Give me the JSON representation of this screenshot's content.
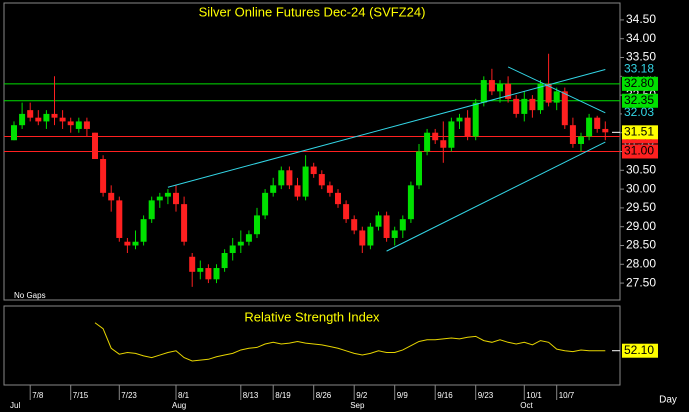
{
  "chart_data": {
    "type": "candlestick",
    "title": "Silver Online Futures Dec-24 (SVFZ24)",
    "note": "No Gaps",
    "x_unit_label": "Day",
    "up_color": "#00e000",
    "down_color": "#ff2020",
    "categories": [
      null,
      null,
      "7/8",
      null,
      null,
      null,
      null,
      "7/15",
      null,
      null,
      null,
      null,
      null,
      "7/23",
      null,
      null,
      null,
      null,
      null,
      null,
      "8/1",
      null,
      null,
      null,
      null,
      null,
      null,
      null,
      "8/13",
      null,
      null,
      null,
      "8/19",
      null,
      null,
      null,
      null,
      "8/26",
      null,
      null,
      null,
      null,
      "9/2",
      null,
      null,
      null,
      null,
      "9/9",
      null,
      null,
      null,
      null,
      "9/16",
      null,
      null,
      null,
      null,
      "9/23",
      null,
      null,
      null,
      null,
      null,
      "10/1",
      null,
      null,
      null,
      "10/7",
      null,
      null,
      null,
      null,
      null,
      null
    ],
    "months": [
      "Jul",
      null,
      null,
      null,
      null,
      null,
      null,
      null,
      null,
      null,
      null,
      null,
      null,
      null,
      null,
      null,
      null,
      null,
      null,
      null,
      "Aug",
      null,
      null,
      null,
      null,
      null,
      null,
      null,
      null,
      null,
      null,
      null,
      null,
      null,
      null,
      null,
      null,
      null,
      null,
      null,
      null,
      null,
      "Sep",
      null,
      null,
      null,
      null,
      null,
      null,
      null,
      null,
      null,
      null,
      null,
      null,
      null,
      null,
      null,
      null,
      null,
      null,
      null,
      null,
      "Oct",
      null,
      null,
      null,
      null,
      null,
      null,
      null,
      null,
      null,
      null
    ],
    "candles": [
      {
        "o": 31.3,
        "h": 31.8,
        "l": 31.3,
        "c": 31.7
      },
      {
        "o": 31.7,
        "h": 32.3,
        "l": 31.6,
        "c": 32.0
      },
      {
        "o": 32.1,
        "h": 32.3,
        "l": 31.8,
        "c": 31.9
      },
      {
        "o": 31.9,
        "h": 32.1,
        "l": 31.7,
        "c": 31.8
      },
      {
        "o": 31.8,
        "h": 32.1,
        "l": 31.6,
        "c": 32.0
      },
      {
        "o": 32.0,
        "h": 33.0,
        "l": 31.7,
        "c": 31.9
      },
      {
        "o": 31.9,
        "h": 32.1,
        "l": 31.6,
        "c": 31.8
      },
      {
        "o": 31.8,
        "h": 31.9,
        "l": 31.5,
        "c": 31.7
      },
      {
        "o": 31.6,
        "h": 31.9,
        "l": 31.5,
        "c": 31.8
      },
      {
        "o": 31.8,
        "h": 31.9,
        "l": 31.4,
        "c": 31.6
      },
      {
        "o": 31.5,
        "h": 31.5,
        "l": 30.8,
        "c": 30.8
      },
      {
        "o": 30.8,
        "h": 30.9,
        "l": 29.8,
        "c": 29.9
      },
      {
        "o": 29.9,
        "h": 30.1,
        "l": 29.4,
        "c": 29.7
      },
      {
        "o": 29.7,
        "h": 29.8,
        "l": 28.6,
        "c": 28.7
      },
      {
        "o": 28.6,
        "h": 28.7,
        "l": 28.3,
        "c": 28.5
      },
      {
        "o": 28.5,
        "h": 28.9,
        "l": 28.4,
        "c": 28.6
      },
      {
        "o": 28.6,
        "h": 29.3,
        "l": 28.5,
        "c": 29.2
      },
      {
        "o": 29.2,
        "h": 29.8,
        "l": 29.1,
        "c": 29.7
      },
      {
        "o": 29.7,
        "h": 29.9,
        "l": 29.5,
        "c": 29.8
      },
      {
        "o": 29.8,
        "h": 30.0,
        "l": 29.6,
        "c": 29.9
      },
      {
        "o": 29.9,
        "h": 30.1,
        "l": 29.4,
        "c": 29.6
      },
      {
        "o": 29.6,
        "h": 29.8,
        "l": 28.5,
        "c": 28.6
      },
      {
        "o": 28.2,
        "h": 28.3,
        "l": 27.4,
        "c": 27.8
      },
      {
        "o": 27.8,
        "h": 28.1,
        "l": 27.6,
        "c": 27.9
      },
      {
        "o": 27.9,
        "h": 28.0,
        "l": 27.5,
        "c": 27.6
      },
      {
        "o": 27.6,
        "h": 28.0,
        "l": 27.5,
        "c": 27.9
      },
      {
        "o": 27.9,
        "h": 28.4,
        "l": 27.8,
        "c": 28.3
      },
      {
        "o": 28.3,
        "h": 28.7,
        "l": 28.1,
        "c": 28.5
      },
      {
        "o": 28.5,
        "h": 28.9,
        "l": 28.3,
        "c": 28.6
      },
      {
        "o": 28.6,
        "h": 28.9,
        "l": 28.5,
        "c": 28.8
      },
      {
        "o": 28.8,
        "h": 29.5,
        "l": 28.7,
        "c": 29.3
      },
      {
        "o": 29.3,
        "h": 30.0,
        "l": 29.2,
        "c": 29.9
      },
      {
        "o": 29.9,
        "h": 30.3,
        "l": 29.8,
        "c": 30.1
      },
      {
        "o": 30.1,
        "h": 30.6,
        "l": 30.0,
        "c": 30.5
      },
      {
        "o": 30.5,
        "h": 30.6,
        "l": 30.0,
        "c": 30.1
      },
      {
        "o": 30.1,
        "h": 30.3,
        "l": 29.7,
        "c": 29.8
      },
      {
        "o": 29.8,
        "h": 30.9,
        "l": 29.7,
        "c": 30.6
      },
      {
        "o": 30.6,
        "h": 30.7,
        "l": 30.3,
        "c": 30.4
      },
      {
        "o": 30.4,
        "h": 30.5,
        "l": 30.0,
        "c": 30.1
      },
      {
        "o": 30.1,
        "h": 30.2,
        "l": 29.8,
        "c": 29.9
      },
      {
        "o": 29.9,
        "h": 30.0,
        "l": 29.5,
        "c": 29.6
      },
      {
        "o": 29.6,
        "h": 29.7,
        "l": 29.1,
        "c": 29.2
      },
      {
        "o": 29.2,
        "h": 29.3,
        "l": 28.8,
        "c": 28.9
      },
      {
        "o": 28.9,
        "h": 29.0,
        "l": 28.3,
        "c": 28.5
      },
      {
        "o": 28.5,
        "h": 29.1,
        "l": 28.4,
        "c": 29.0
      },
      {
        "o": 29.0,
        "h": 29.4,
        "l": 28.9,
        "c": 29.3
      },
      {
        "o": 29.3,
        "h": 29.4,
        "l": 28.6,
        "c": 28.7
      },
      {
        "o": 28.7,
        "h": 29.0,
        "l": 28.5,
        "c": 28.9
      },
      {
        "o": 28.9,
        "h": 29.3,
        "l": 28.7,
        "c": 29.2
      },
      {
        "o": 29.2,
        "h": 30.2,
        "l": 29.1,
        "c": 30.1
      },
      {
        "o": 30.1,
        "h": 31.2,
        "l": 30.0,
        "c": 31.0
      },
      {
        "o": 31.0,
        "h": 31.6,
        "l": 30.9,
        "c": 31.5
      },
      {
        "o": 31.5,
        "h": 31.6,
        "l": 31.2,
        "c": 31.3
      },
      {
        "o": 31.3,
        "h": 31.8,
        "l": 30.7,
        "c": 31.1
      },
      {
        "o": 31.1,
        "h": 31.9,
        "l": 31.0,
        "c": 31.8
      },
      {
        "o": 31.8,
        "h": 32.0,
        "l": 31.6,
        "c": 31.9
      },
      {
        "o": 31.9,
        "h": 32.1,
        "l": 31.3,
        "c": 31.4
      },
      {
        "o": 31.4,
        "h": 32.4,
        "l": 31.3,
        "c": 32.3
      },
      {
        "o": 32.3,
        "h": 33.0,
        "l": 32.2,
        "c": 32.9
      },
      {
        "o": 32.9,
        "h": 33.2,
        "l": 32.5,
        "c": 32.6
      },
      {
        "o": 32.6,
        "h": 32.9,
        "l": 32.3,
        "c": 32.8
      },
      {
        "o": 32.8,
        "h": 33.0,
        "l": 32.3,
        "c": 32.4
      },
      {
        "o": 32.4,
        "h": 32.5,
        "l": 31.9,
        "c": 32.0
      },
      {
        "o": 32.0,
        "h": 32.6,
        "l": 31.8,
        "c": 32.4
      },
      {
        "o": 32.4,
        "h": 32.5,
        "l": 31.9,
        "c": 32.1
      },
      {
        "o": 32.1,
        "h": 32.9,
        "l": 32.0,
        "c": 32.8
      },
      {
        "o": 32.8,
        "h": 33.6,
        "l": 32.2,
        "c": 32.3
      },
      {
        "o": 32.3,
        "h": 32.7,
        "l": 32.1,
        "c": 32.6
      },
      {
        "o": 32.6,
        "h": 32.7,
        "l": 31.6,
        "c": 31.7
      },
      {
        "o": 31.7,
        "h": 31.9,
        "l": 31.1,
        "c": 31.2
      },
      {
        "o": 31.2,
        "h": 31.5,
        "l": 31.0,
        "c": 31.4
      },
      {
        "o": 31.4,
        "h": 32.0,
        "l": 31.3,
        "c": 31.9
      },
      {
        "o": 31.9,
        "h": 31.95,
        "l": 31.5,
        "c": 31.6
      },
      {
        "o": 31.6,
        "h": 31.8,
        "l": 31.3,
        "c": 31.51
      }
    ],
    "ylim": [
      27.05,
      34.95
    ],
    "yticks": [
      {
        "value": 27.5,
        "label": "27.50"
      },
      {
        "value": 28,
        "label": "28.00"
      },
      {
        "value": 28.5,
        "label": "28.50"
      },
      {
        "value": 29,
        "label": "29.00"
      },
      {
        "value": 29.5,
        "label": "29.50"
      },
      {
        "value": 30,
        "label": "30.00"
      },
      {
        "value": 30.5,
        "label": "30.50"
      },
      {
        "value": 31,
        "label": "31.00"
      },
      {
        "value": 31.5,
        "label": "31.50"
      },
      {
        "value": 32,
        "label": "32.00"
      },
      {
        "value": 32.5,
        "label": "32.50"
      },
      {
        "value": 33,
        "label": "33.00"
      },
      {
        "value": 33.5,
        "label": "33.50"
      },
      {
        "value": 34,
        "label": "34.00"
      },
      {
        "value": 34.5,
        "label": "34.50"
      }
    ],
    "levels": [
      {
        "value": 32.8,
        "label": "32.80",
        "color": "#00e000"
      },
      {
        "value": 32.35,
        "label": "32.35",
        "color": "#00e000"
      },
      {
        "value": 31.4,
        "label": "31.40",
        "color": "#ff2020"
      },
      {
        "value": 31,
        "label": "31.00",
        "color": "#ff2020"
      }
    ],
    "trendlines": [
      {
        "x": [
          19,
          73
        ],
        "values": [
          30.05,
          33.18
        ],
        "color": "#33d6e6"
      },
      {
        "x": [
          46,
          73
        ],
        "values": [
          28.35,
          31.25
        ],
        "color": "#33d6e6"
      },
      {
        "x": [
          61,
          73
        ],
        "values": [
          33.25,
          32.03
        ],
        "color": "#33d6e6"
      }
    ],
    "last_price": {
      "value": 31.51,
      "label": "31.51",
      "color": "#ffff00"
    },
    "rsi": {
      "title": "Relative Strength Index",
      "color": "#e6d400",
      "ylim": [
        0,
        100
      ],
      "values": [
        null,
        null,
        null,
        null,
        null,
        null,
        null,
        null,
        null,
        null,
        85,
        78,
        55,
        48,
        50,
        49,
        46,
        44,
        47,
        50,
        52,
        44,
        40,
        41,
        42,
        45,
        47,
        49,
        53,
        55,
        56,
        60,
        62,
        60,
        61,
        63,
        61,
        60,
        59,
        57,
        55,
        52,
        49,
        47,
        49,
        52,
        50,
        50,
        53,
        58,
        63,
        65,
        65,
        66,
        67,
        66,
        68,
        69,
        64,
        62,
        65,
        62,
        60,
        62,
        59,
        64,
        62,
        54,
        52,
        51,
        53,
        52.1,
        52.1,
        52.1
      ],
      "last_label": {
        "value": 52.1,
        "label": "52.10"
      }
    }
  }
}
